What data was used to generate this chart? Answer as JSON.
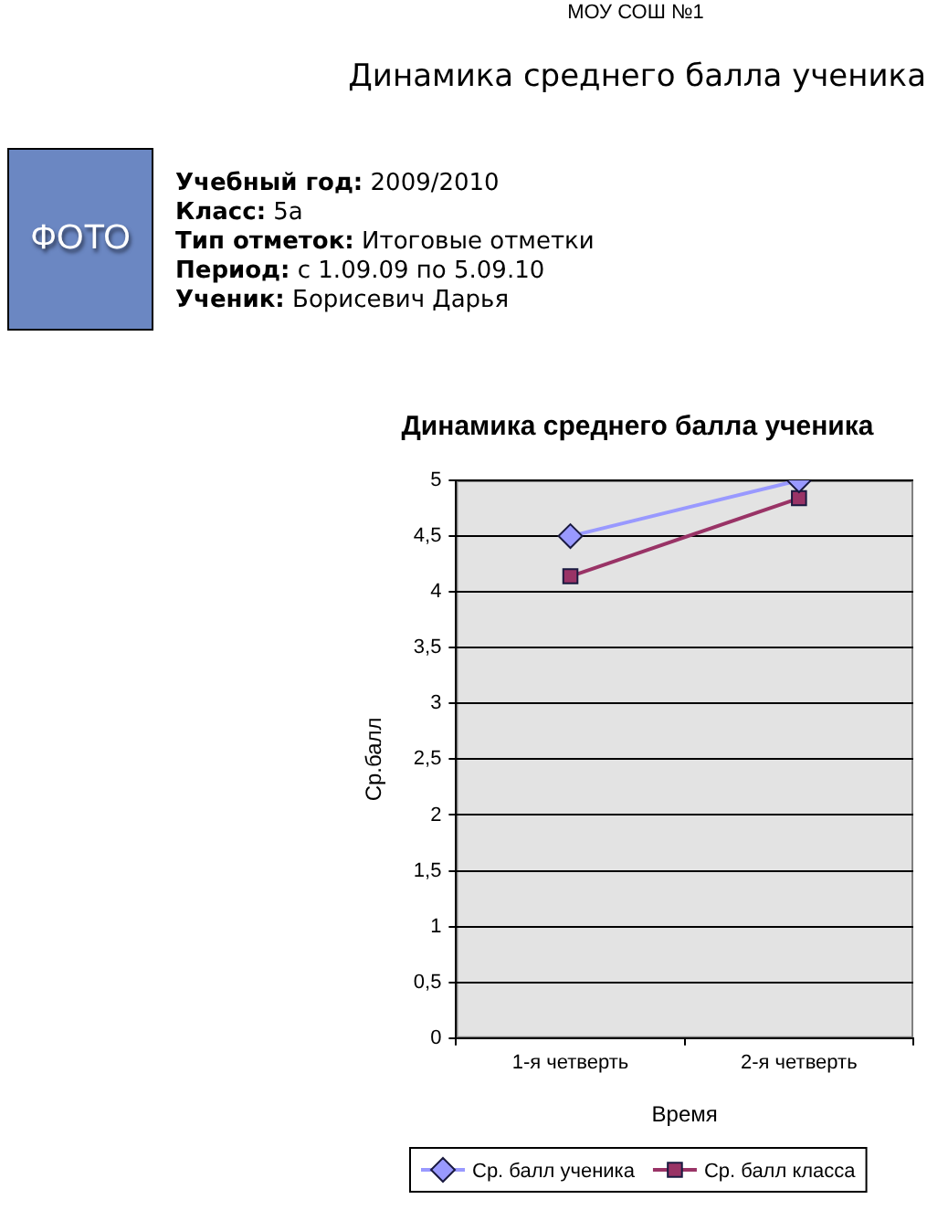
{
  "chart_data": [
    {
      "type": "other",
      "title": "Динамика среднего балла ученика",
      "annotations": [
        "МОУ СОШ №1",
        "ФОТО",
        "Учебный год: 2009/2010",
        "Класс: 5а",
        "Тип отметок: Итоговые отметки",
        "Период: с 1.09.09 по 5.09.10",
        "Ученик: Борисевич Дарья"
      ]
    },
    {
      "type": "line",
      "title": "Динамика среднего балла ученика",
      "xlabel": "Время",
      "ylabel": "Ср.балл",
      "categories": [
        "1-я четверть",
        "2-я четверть"
      ],
      "series": [
        {
          "name": "Ср. балл ученика",
          "color": "#9999ff",
          "marker": "diamond",
          "values": [
            4.5,
            5
          ]
        },
        {
          "name": "Ср. балл класса",
          "color": "#993366",
          "marker": "square",
          "values": [
            4.14,
            4.84
          ]
        }
      ],
      "ylim": [
        0,
        5
      ],
      "yticks": [
        0,
        {
          "value": 0.5,
          "label": "0,5"
        },
        1,
        {
          "value": 1.5,
          "label": "1,5"
        },
        2,
        {
          "value": 2.5,
          "label": "2,5"
        },
        3,
        {
          "value": 3.5,
          "label": "3,5"
        },
        4,
        {
          "value": 4.5,
          "label": "4,5"
        },
        5
      ],
      "grid": "y",
      "legend": "bottom"
    }
  ]
}
